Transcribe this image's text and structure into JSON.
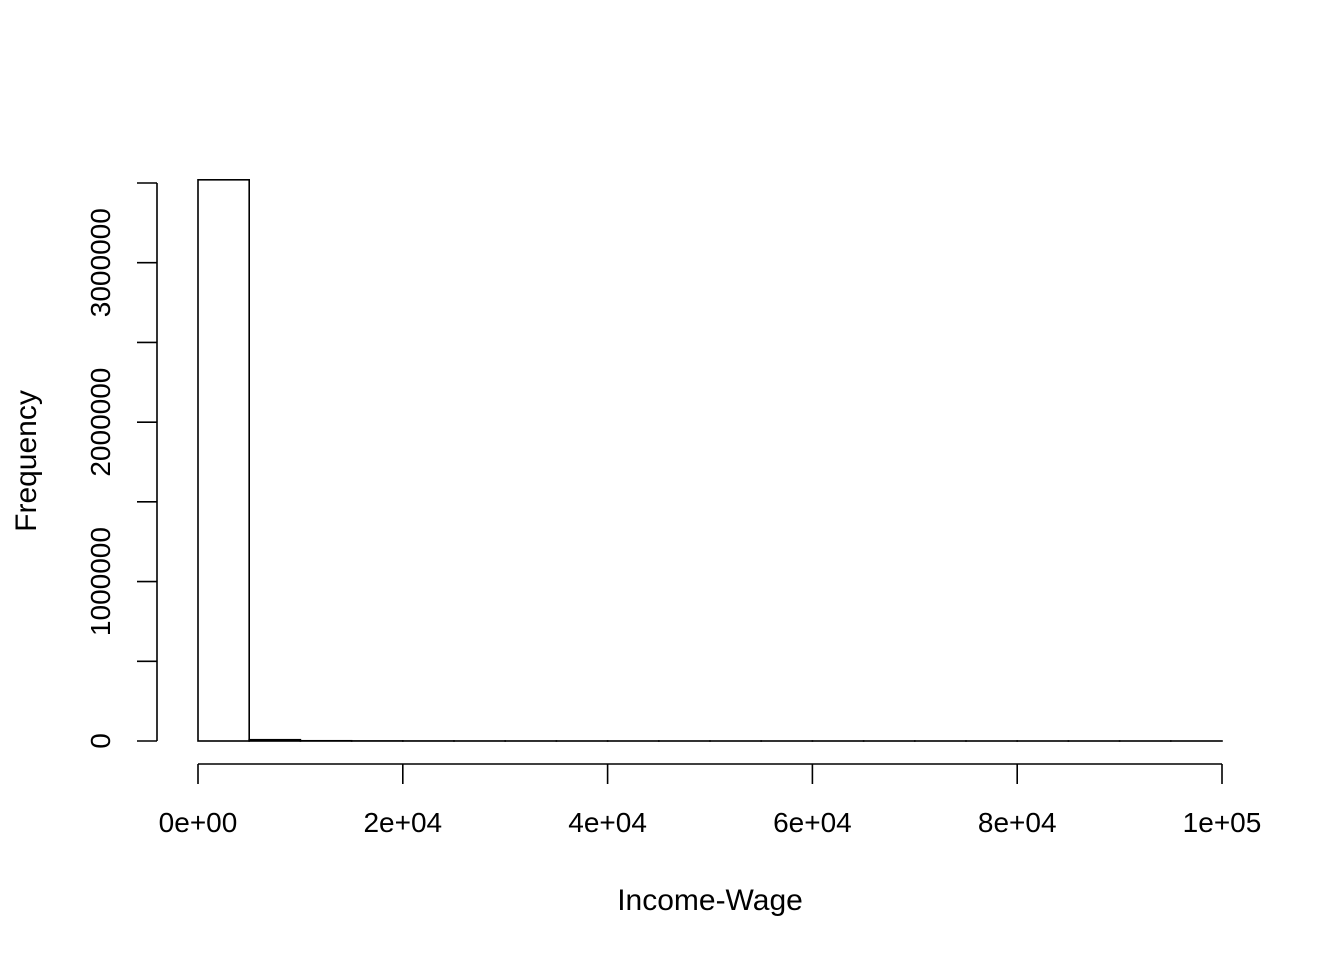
{
  "chart_data": {
    "type": "bar",
    "title": "",
    "xlabel": "Income-Wage",
    "ylabel": "Frequency",
    "bin_width": 5000,
    "bins": [
      {
        "start": 0,
        "end": 5000,
        "count": 3520000
      },
      {
        "start": 5000,
        "end": 10000,
        "count": 8000
      },
      {
        "start": 10000,
        "end": 15000,
        "count": 1500
      },
      {
        "start": 15000,
        "end": 20000,
        "count": 600
      },
      {
        "start": 20000,
        "end": 25000,
        "count": 300
      },
      {
        "start": 25000,
        "end": 30000,
        "count": 150
      },
      {
        "start": 30000,
        "end": 35000,
        "count": 100
      },
      {
        "start": 35000,
        "end": 40000,
        "count": 60
      },
      {
        "start": 40000,
        "end": 45000,
        "count": 40
      },
      {
        "start": 45000,
        "end": 50000,
        "count": 30
      },
      {
        "start": 50000,
        "end": 55000,
        "count": 20
      },
      {
        "start": 55000,
        "end": 60000,
        "count": 15
      },
      {
        "start": 60000,
        "end": 65000,
        "count": 10
      },
      {
        "start": 65000,
        "end": 70000,
        "count": 8
      },
      {
        "start": 70000,
        "end": 75000,
        "count": 6
      },
      {
        "start": 75000,
        "end": 80000,
        "count": 5
      },
      {
        "start": 80000,
        "end": 85000,
        "count": 4
      },
      {
        "start": 85000,
        "end": 90000,
        "count": 3
      },
      {
        "start": 90000,
        "end": 95000,
        "count": 2
      },
      {
        "start": 95000,
        "end": 100000,
        "count": 2
      }
    ],
    "xlim": [
      0,
      100000
    ],
    "ylim": [
      0,
      3500000
    ],
    "x_ticks": [
      0,
      20000,
      40000,
      60000,
      80000,
      100000
    ],
    "x_tick_labels": [
      "0e+00",
      "2e+04",
      "4e+04",
      "6e+04",
      "8e+04",
      "1e+05"
    ],
    "y_ticks": [
      0,
      500000,
      1000000,
      1500000,
      2000000,
      2500000,
      3000000,
      3500000
    ],
    "y_tick_labels": [
      "0",
      "",
      "1000000",
      "",
      "2000000",
      "",
      "3000000",
      ""
    ],
    "grid": false,
    "legend": "none"
  }
}
